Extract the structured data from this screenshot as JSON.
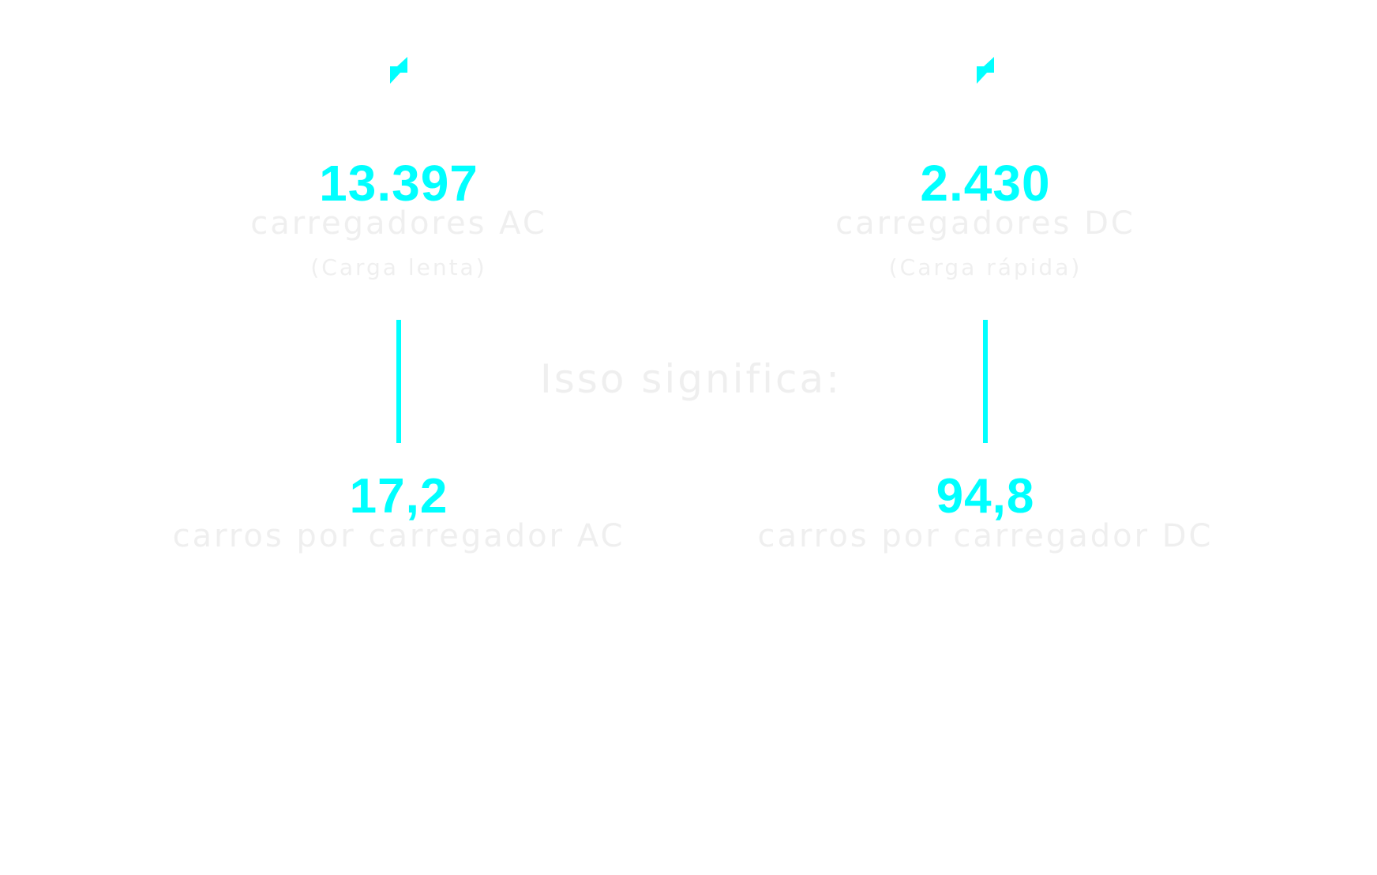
{
  "colors": {
    "accent": "#00ffff",
    "text": "#efefef",
    "background": "#ffffff"
  },
  "center_title": "Isso significa:",
  "columns": [
    {
      "icon": "lightning-bolt-icon",
      "count": "13.397",
      "label": "carregadores AC",
      "sublabel": "(Carga lenta)",
      "ratio": "17,2",
      "ratio_label": "carros por carregador AC"
    },
    {
      "icon": "lightning-bolt-icon",
      "count": "2.430",
      "label": "carregadores DC",
      "sublabel": "(Carga rápida)",
      "ratio": "94,8",
      "ratio_label": "carros por carregador DC"
    }
  ]
}
